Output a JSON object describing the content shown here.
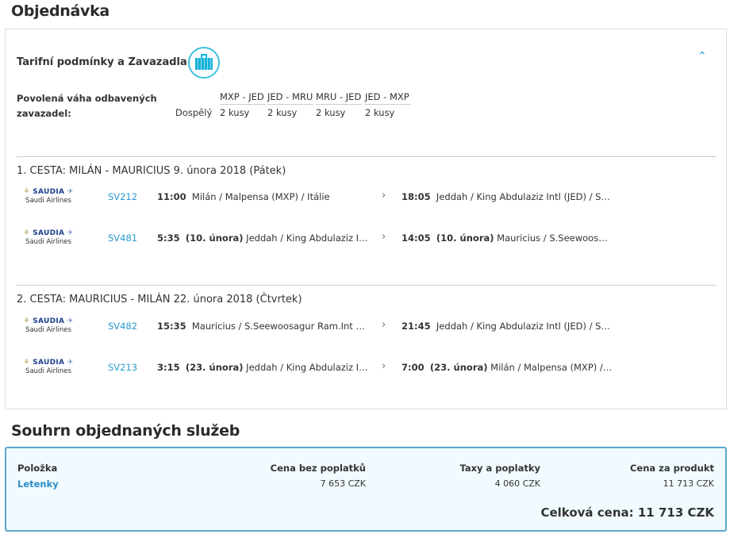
{
  "page_title": "Objednávka",
  "fare": {
    "title": "Tarifní podmínky a Zavazadla",
    "icon": "suitcase-icon",
    "collapse_icon": "chevron-up-icon",
    "baggage_label": "Povolená váha odbavených zavazadel:",
    "passenger": "Dospělý",
    "routes": [
      {
        "route": "MXP - JED",
        "allowance": "2 kusy"
      },
      {
        "route": "JED - MRU",
        "allowance": "2 kusy"
      },
      {
        "route": "MRU - JED",
        "allowance": "2 kusy"
      },
      {
        "route": "JED - MXP",
        "allowance": "2 kusy"
      }
    ]
  },
  "legs": [
    {
      "title": "1. CESTA: MILÁN - MAURICIUS 9. února 2018 (Pátek)",
      "segments": [
        {
          "airline": "Saudi Airlines",
          "logo": "SAUDIA",
          "flight": "SV212",
          "dep_time": "11:00",
          "dep_date": "",
          "dep_place": "Milán / Malpensa (MXP) / Itálie",
          "arr_time": "18:05",
          "arr_date": "",
          "arr_place": "Jeddah / King Abdulaziz Intl (JED) / Saú…"
        },
        {
          "airline": "Saudi Airlines",
          "logo": "SAUDIA",
          "flight": "SV481",
          "dep_time": "5:35",
          "dep_date": "(10. února)",
          "dep_place": "Jeddah / King Abdulaziz Intl (…",
          "arr_time": "14:05",
          "arr_date": "(10. února)",
          "arr_place": "Mauricius / S.Seewoosagur …"
        }
      ]
    },
    {
      "title": "2. CESTA: MAURICIUS - MILÁN 22. února 2018 (Čtvrtek)",
      "segments": [
        {
          "airline": "Saudi Airlines",
          "logo": "SAUDIA",
          "flight": "SV482",
          "dep_time": "15:35",
          "dep_date": "",
          "dep_place": "Mauricius / S.Seewoosagur Ram.Int (MR…",
          "arr_time": "21:45",
          "arr_date": "",
          "arr_place": "Jeddah / King Abdulaziz Intl (JED) / Saú…"
        },
        {
          "airline": "Saudi Airlines",
          "logo": "SAUDIA",
          "flight": "SV213",
          "dep_time": "3:15",
          "dep_date": "(23. února)",
          "dep_place": "Jeddah / King Abdulaziz Intl (…",
          "arr_time": "7:00",
          "arr_date": "(23. února)",
          "arr_place": "Milán / Malpensa (MXP) / Itálie"
        }
      ]
    }
  ],
  "summary": {
    "title": "Souhrn objednaných služeb",
    "headers": [
      "Položka",
      "Cena bez poplatků",
      "Taxy a poplatky",
      "Cena za produkt"
    ],
    "row": {
      "item": "Letenky",
      "base": "7 653 CZK",
      "taxes": "4 060 CZK",
      "total": "11 713 CZK"
    },
    "grand_total": "Celková cena: 11 713 CZK"
  },
  "colors": {
    "accent": "#2b9bd1",
    "summary_bg": "#f1fbff",
    "summary_border": "#5aa7cc",
    "icon": "#16b3da"
  }
}
